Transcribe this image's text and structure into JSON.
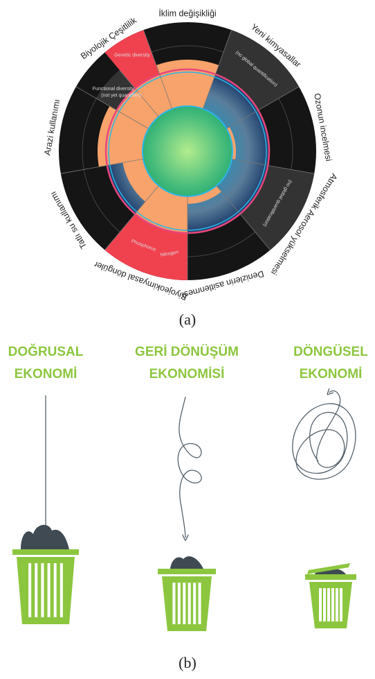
{
  "figure_a": {
    "boundaries": [
      "İklim değişikliği",
      "Yeni kimyasallar",
      "Ozonun incelmesi",
      "Atmosferik Aerosol yükselmesi",
      "Denizlerin asitlenmesi",
      "Biyojeokimyasal döngüler",
      "Tatlı su kullanımı",
      "Arazi kullanımı",
      "Biyolojik Çeşitlilik"
    ],
    "inner_labels": [
      "Genetic diversity",
      "Functional diversity",
      "(not yet quantified)",
      "(no global quantification)",
      "(no global quantification)",
      "Phosphorus",
      "Nitrogen"
    ]
  },
  "caption_a": "(a)",
  "figure_b": {
    "panels": [
      {
        "title_lines": [
          "DOĞRUSAL",
          "EKONOMİ"
        ]
      },
      {
        "title_lines": [
          "GERİ DÖNÜŞÜM",
          "EKONOMİSİ"
        ]
      },
      {
        "title_lines": [
          "DÖNGÜSEL",
          "EKONOMİ"
        ]
      }
    ]
  },
  "caption_b": "(b)"
}
